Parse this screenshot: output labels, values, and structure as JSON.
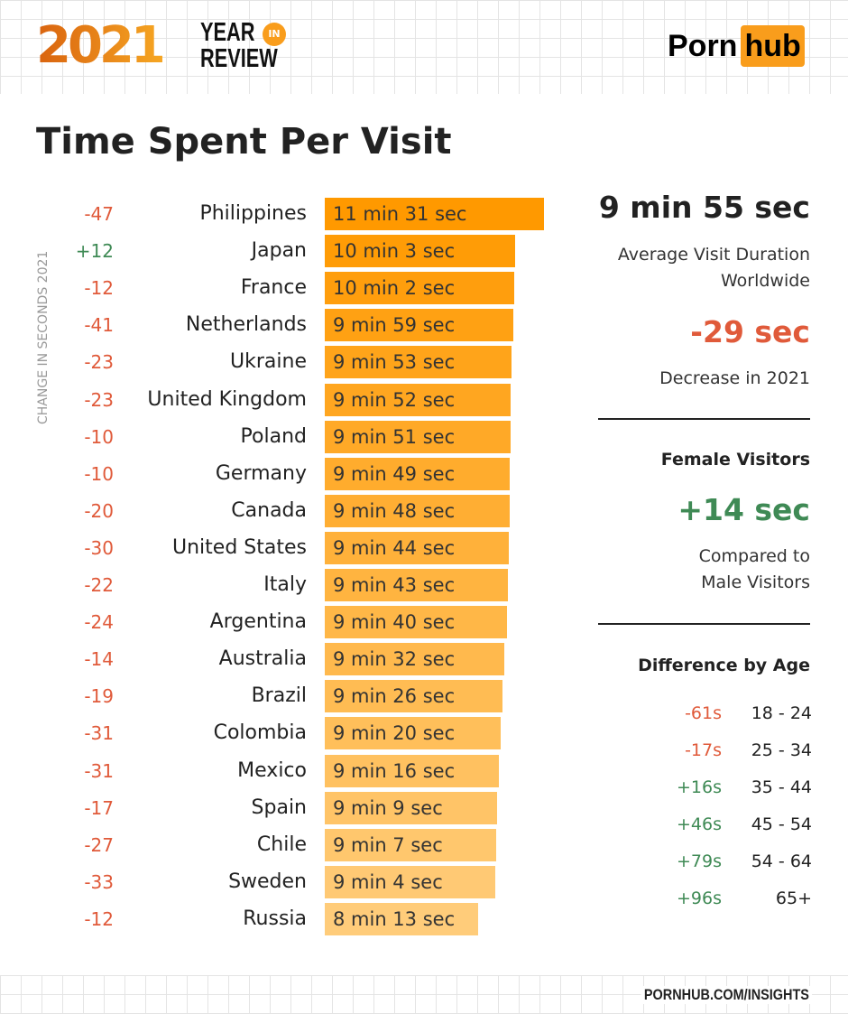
{
  "header": {
    "logo_year": "2021",
    "logo_line1": "YEAR",
    "logo_in": "IN",
    "logo_line2": "REVIEW",
    "brand_left": "Porn",
    "brand_right": "hub"
  },
  "colors": {
    "bar_start": "#ff9900",
    "bar_end": "#ffcc7a",
    "negative": "#e05a3a",
    "positive": "#3f8a55"
  },
  "chart_data": {
    "type": "bar",
    "orientation": "horizontal",
    "title": "Time Spent Per Visit",
    "ylabel": "CHANGE IN SECONDS 2021",
    "categories": [
      "Philippines",
      "Japan",
      "France",
      "Netherlands",
      "Ukraine",
      "United Kingdom",
      "Poland",
      "Germany",
      "Canada",
      "United States",
      "Italy",
      "Argentina",
      "Australia",
      "Brazil",
      "Colombia",
      "Mexico",
      "Spain",
      "Chile",
      "Sweden",
      "Russia"
    ],
    "values_seconds": [
      691,
      603,
      602,
      599,
      593,
      592,
      591,
      589,
      588,
      584,
      583,
      580,
      572,
      566,
      560,
      556,
      549,
      547,
      544,
      493
    ],
    "labels": [
      "11 min 31 sec",
      "10 min 3 sec",
      "10 min 2 sec",
      "9 min 59 sec",
      "9 min 53 sec",
      "9 min 52 sec",
      "9 min 51 sec",
      "9 min 49 sec",
      "9 min 48 sec",
      "9 min 44 sec",
      "9 min 43 sec",
      "9 min 40 sec",
      "9 min 32 sec",
      "9 min 26 sec",
      "9 min 20 sec",
      "9 min 16 sec",
      "9 min 9 sec",
      "9 min 7 sec",
      "9 min 4 sec",
      "8 min 13 sec"
    ],
    "changes": [
      "-47",
      "+12",
      "-12",
      "-41",
      "-23",
      "-23",
      "-10",
      "-10",
      "-20",
      "-30",
      "-22",
      "-24",
      "-14",
      "-19",
      "-31",
      "-31",
      "-17",
      "-27",
      "-33",
      "-12"
    ]
  },
  "summary": {
    "avg": "9 min 55 sec",
    "avg_label1": "Average Visit Duration",
    "avg_label2": "Worldwide",
    "change": "-29 sec",
    "change_label": "Decrease in 2021",
    "female_title": "Female Visitors",
    "female_value": "+14 sec",
    "female_label1": "Compared to",
    "female_label2": "Male Visitors",
    "age_title": "Difference by Age",
    "ages": [
      {
        "diff": "-61s",
        "range": "18 - 24"
      },
      {
        "diff": "-17s",
        "range": "25 - 34"
      },
      {
        "diff": "+16s",
        "range": "35 - 44"
      },
      {
        "diff": "+46s",
        "range": "45 - 54"
      },
      {
        "diff": "+79s",
        "range": "54 - 64"
      },
      {
        "diff": "+96s",
        "range": "65+"
      }
    ]
  },
  "footer": {
    "link": "PORNHUB.COM/INSIGHTS"
  }
}
